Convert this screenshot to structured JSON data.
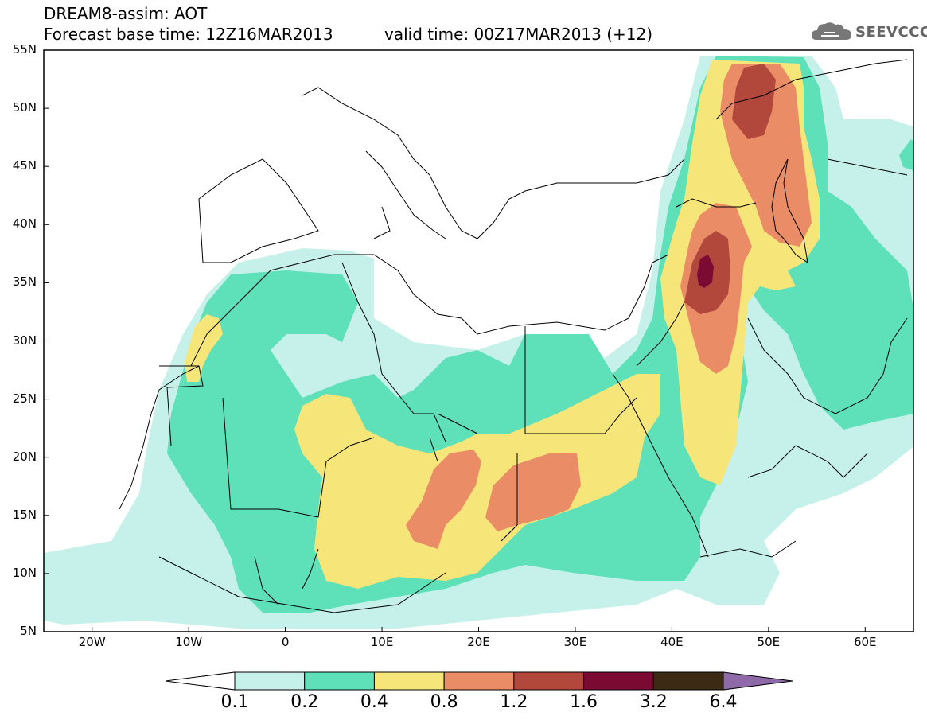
{
  "header": {
    "line1": "DREAM8-assim: AOT",
    "line2": "Forecast base time: 12Z16MAR2013",
    "valid": "valid time: 00Z17MAR2013 (+12)",
    "logo_text": "SEEVCCC"
  },
  "map": {
    "variable": "AOT",
    "lon_range": [
      -25,
      65
    ],
    "lat_range": [
      5,
      55
    ],
    "lat_ticks": [
      "55N",
      "50N",
      "45N",
      "40N",
      "35N",
      "30N",
      "25N",
      "20N",
      "15N",
      "10N",
      "5N"
    ],
    "lon_ticks": [
      "20W",
      "10W",
      "0",
      "10E",
      "20E",
      "30E",
      "40E",
      "50E",
      "60E"
    ]
  },
  "colorbar": {
    "labels": [
      "0.1",
      "0.2",
      "0.4",
      "0.8",
      "1.2",
      "1.6",
      "3.2",
      "6.4"
    ],
    "colors": [
      "#ffffff",
      "#c6f1ea",
      "#5ee0b9",
      "#f6e67a",
      "#ea8c66",
      "#b2483c",
      "#7c0b34",
      "#3c2a14",
      "#8e6aa8"
    ]
  }
}
